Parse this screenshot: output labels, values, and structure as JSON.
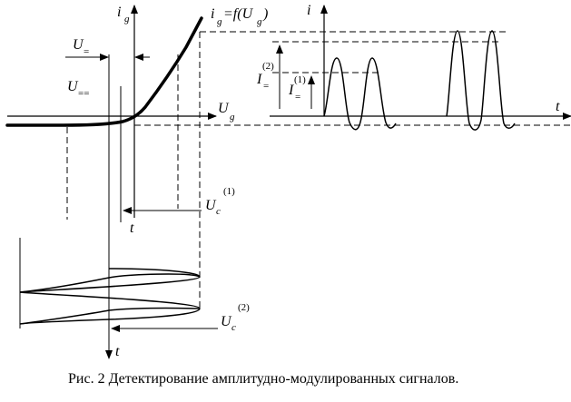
{
  "labels": {
    "ig_axis": "i",
    "ig_axis_sub": "g",
    "func_i": "i",
    "func_g1": "g",
    "func_eq": "=f(U",
    "func_g2": "g",
    "func_close": ")",
    "u_eq": "U",
    "u_eq_sub": "=",
    "u_eqeq": "U",
    "u_eqeq_sub": "==",
    "ug_axis": "U",
    "ug_axis_sub": "g",
    "uc1": "U",
    "uc1_sub": "c",
    "uc1_sup": "(1)",
    "t_mid": "t",
    "uc2": "U",
    "uc2_sub": "c",
    "uc2_sup": "(2)",
    "t_bottom": "t",
    "i_axis": "i",
    "t_right": "t",
    "i2": "I",
    "i2_sub": "=",
    "i2_sup": "(2)",
    "i1": "I",
    "i1_sub": "=",
    "i1_sup": "(1)"
  },
  "caption": "Рис. 2 Детектирование амплитудно-модулированных сигналов."
}
